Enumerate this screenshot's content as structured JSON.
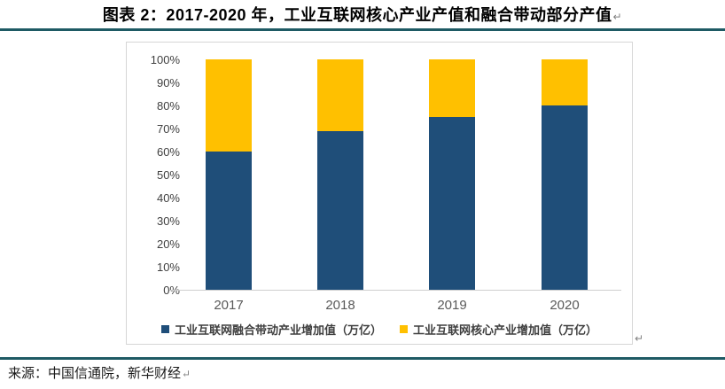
{
  "page": {
    "title": "图表 2：2017-2020 年，工业互联网核心产业产值和融合带动部分产值",
    "paragraph_mark": "↵",
    "source": "来源：中国信通院，新华财经",
    "rule_color": "#1e5a64",
    "box_border_color": "#d6d6d6"
  },
  "chart_data": {
    "type": "bar",
    "stacked": true,
    "unit": "percent_of_total",
    "title": "2017-2020 年，工业互联网核心产业产值和融合带动部分产值",
    "categories": [
      "2017",
      "2018",
      "2019",
      "2020"
    ],
    "series": [
      {
        "name": "工业互联网融合带动产业增加值（万亿）",
        "color": "#1f4e79",
        "values": [
          60,
          69,
          75,
          80
        ]
      },
      {
        "name": "工业互联网核心产业增加值（万亿）",
        "color": "#ffc000",
        "values": [
          40,
          31,
          25,
          20
        ]
      }
    ],
    "xlabel": "",
    "ylabel": "",
    "ylim": [
      0,
      100
    ],
    "yticks": [
      "0%",
      "10%",
      "20%",
      "30%",
      "40%",
      "50%",
      "60%",
      "70%",
      "80%",
      "90%",
      "100%"
    ],
    "grid": false,
    "legend_position": "bottom"
  }
}
